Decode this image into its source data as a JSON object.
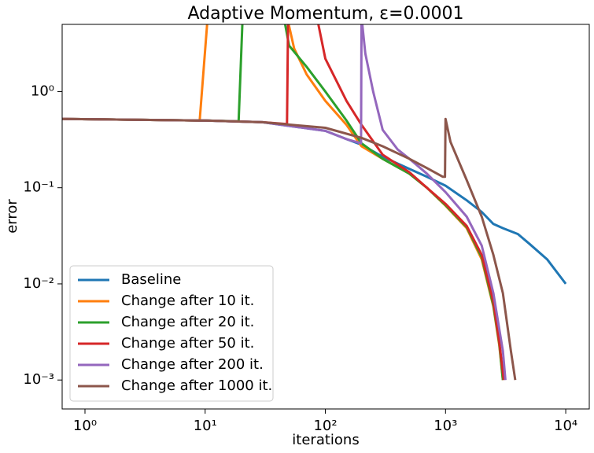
{
  "chart_data": {
    "type": "line",
    "title": "Adaptive Momentum, ε=0.0001",
    "xlabel": "iterations",
    "ylabel": "error",
    "xscale": "log",
    "yscale": "log",
    "xlim": [
      0.646,
      15700
    ],
    "ylim": [
      0.0005,
      5
    ],
    "xticks": [
      {
        "value": 1,
        "label": "10⁰"
      },
      {
        "value": 10,
        "label": "10¹"
      },
      {
        "value": 100,
        "label": "10²"
      },
      {
        "value": 1000,
        "label": "10³"
      },
      {
        "value": 10000,
        "label": "10⁴"
      }
    ],
    "yticks": [
      {
        "value": 0.001,
        "label": "10⁻³"
      },
      {
        "value": 0.01,
        "label": "10⁻²"
      },
      {
        "value": 0.1,
        "label": "10⁻¹"
      },
      {
        "value": 1,
        "label": "10⁰"
      }
    ],
    "legend": "lower left",
    "series": [
      {
        "name": "Baseline",
        "color": "#1f77b4",
        "x": [
          0.65,
          10,
          30,
          100,
          150,
          200,
          300,
          500,
          700,
          1000,
          1500,
          2000,
          2500,
          3000,
          4000,
          5000,
          7000,
          10000
        ],
        "values": [
          0.52,
          0.5,
          0.48,
          0.39,
          0.32,
          0.28,
          0.21,
          0.157,
          0.13,
          0.105,
          0.074,
          0.056,
          0.042,
          0.038,
          0.033,
          0.026,
          0.018,
          0.01
        ]
      },
      {
        "name": "Change after 10 it.",
        "color": "#ff7f0e",
        "x": [
          0.65,
          9,
          10.5,
          48,
          55,
          70,
          100,
          150,
          200,
          300,
          500,
          700,
          1000,
          1500,
          2000,
          2500,
          2800,
          3000
        ],
        "values": [
          0.52,
          0.5,
          6,
          6,
          2.8,
          1.5,
          0.8,
          0.45,
          0.27,
          0.2,
          0.14,
          0.1,
          0.065,
          0.038,
          0.018,
          0.0058,
          0.0023,
          0.001
        ]
      },
      {
        "name": "Change after 20 it.",
        "color": "#2ca02c",
        "x": [
          0.65,
          10,
          19,
          20.5,
          45,
          50,
          70,
          100,
          150,
          200,
          300,
          500,
          700,
          1000,
          1500,
          2000,
          2500,
          2800,
          3000
        ],
        "values": [
          0.52,
          0.5,
          0.49,
          6,
          6,
          3,
          1.8,
          1.0,
          0.5,
          0.29,
          0.2,
          0.14,
          0.1,
          0.066,
          0.039,
          0.019,
          0.006,
          0.0024,
          0.001
        ]
      },
      {
        "name": "Change after 50 it.",
        "color": "#d62728",
        "x": [
          0.65,
          10,
          30,
          48,
          49,
          85,
          100,
          150,
          200,
          300,
          500,
          700,
          1000,
          1500,
          2000,
          2500,
          2800,
          3050
        ],
        "values": [
          0.52,
          0.5,
          0.48,
          0.46,
          6,
          6,
          2.2,
          0.8,
          0.45,
          0.22,
          0.145,
          0.1,
          0.068,
          0.04,
          0.02,
          0.0065,
          0.0025,
          0.001
        ]
      },
      {
        "name": "Change after 200 it.",
        "color": "#9467bd",
        "x": [
          0.65,
          10,
          30,
          100,
          150,
          198,
          200,
          215,
          250,
          300,
          400,
          500,
          700,
          1000,
          1500,
          2000,
          2500,
          3000,
          3150
        ],
        "values": [
          0.52,
          0.5,
          0.48,
          0.39,
          0.32,
          0.29,
          6,
          2.5,
          1.0,
          0.4,
          0.25,
          0.2,
          0.14,
          0.09,
          0.05,
          0.025,
          0.008,
          0.002,
          0.001
        ]
      },
      {
        "name": "Change after 1000 it.",
        "color": "#8c564b",
        "x": [
          0.65,
          10,
          30,
          100,
          200,
          300,
          500,
          700,
          950,
          990,
          1000,
          1100,
          1500,
          2000,
          2500,
          3000,
          3500,
          3800
        ],
        "values": [
          0.52,
          0.5,
          0.48,
          0.42,
          0.33,
          0.27,
          0.2,
          0.16,
          0.13,
          0.13,
          0.52,
          0.3,
          0.12,
          0.05,
          0.02,
          0.008,
          0.002,
          0.001
        ]
      }
    ]
  }
}
